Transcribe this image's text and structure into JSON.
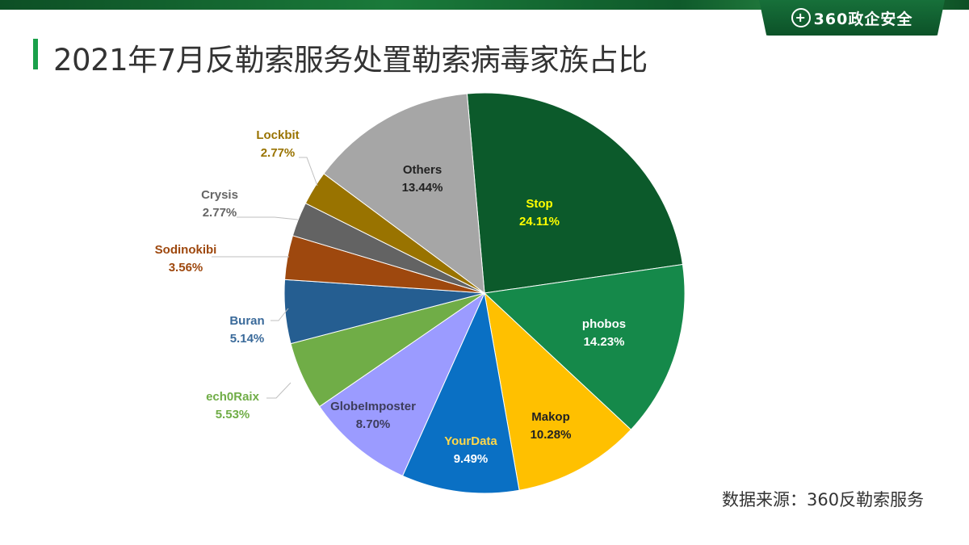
{
  "header": {
    "logo_text": "360政企安全",
    "logo_icon": "plus-circle-icon"
  },
  "title": "2021年7月反勒索服务处置勒索病毒家族占比",
  "source": "数据来源：360反勒索服务",
  "chart_data": {
    "type": "pie",
    "title": "2021年7月反勒索服务处置勒索病毒家族占比",
    "direction": "clockwise",
    "slices": [
      {
        "name": "Stop",
        "value": 24.11,
        "label": "24.11%",
        "color": "#0c5a2b",
        "text_color": "#ffff00"
      },
      {
        "name": "phobos",
        "value": 14.23,
        "label": "14.23%",
        "color": "#15894a",
        "text_color": "#ffffff"
      },
      {
        "name": "Makop",
        "value": 10.28,
        "label": "10.28%",
        "color": "#ffc000",
        "text_color": "#222222"
      },
      {
        "name": "YourData",
        "value": 9.49,
        "label": "9.49%",
        "color": "#0a70c4",
        "text_color": "#ffd84a"
      },
      {
        "name": "GlobeImposter",
        "value": 8.7,
        "label": "8.70%",
        "color": "#9b9bff",
        "text_color": "#3d3d5c"
      },
      {
        "name": "ech0Raix",
        "value": 5.53,
        "label": "5.53%",
        "color": "#70ad47",
        "text_color": "#70ad47"
      },
      {
        "name": "Buran",
        "value": 5.14,
        "label": "5.14%",
        "color": "#255e91",
        "text_color": "#3a6a9a"
      },
      {
        "name": "Sodinokibi",
        "value": 3.56,
        "label": "3.56%",
        "color": "#9e480e",
        "text_color": "#9e480e"
      },
      {
        "name": "Crysis",
        "value": 2.77,
        "label": "2.77%",
        "color": "#636363",
        "text_color": "#666666"
      },
      {
        "name": "Lockbit",
        "value": 2.77,
        "label": "2.77%",
        "color": "#997300",
        "text_color": "#997300"
      },
      {
        "name": "Others",
        "value": 13.44,
        "label": "13.44%",
        "color": "#a6a6a6",
        "text_color": "#222222"
      }
    ]
  }
}
